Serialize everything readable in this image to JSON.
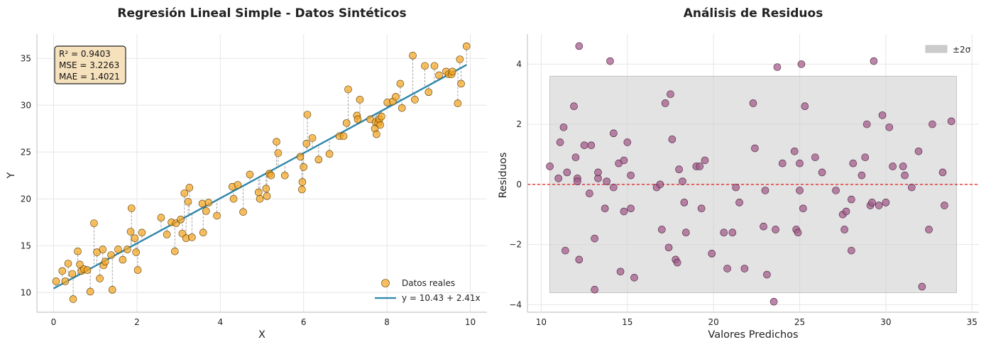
{
  "colors": {
    "scatter_fill": "#f5a623",
    "scatter_edge": "#5a3a00",
    "fit_line": "#2e86ab",
    "residual_line": "#999999",
    "resid_fill": "#a45d8a",
    "resid_edge": "#4a2040",
    "zero_line": "#e31a1c",
    "band_fill": "#cccccc",
    "stats_bg": "#f6e1bd"
  },
  "chart_data": [
    {
      "type": "scatter",
      "title": "Regresión Lineal Simple - Datos Sintéticos",
      "xlabel": "X",
      "ylabel": "Y",
      "xlim": [
        -0.4,
        10.4
      ],
      "ylim": [
        7.9,
        37.6
      ],
      "xticks": [
        0,
        2,
        4,
        6,
        8,
        10
      ],
      "yticks": [
        10,
        15,
        20,
        25,
        30,
        35
      ],
      "grid": true,
      "legend_position": "bottom-right",
      "stats_text": [
        "R² = 0.9403",
        "MSE = 3.2263",
        "MAE = 1.4021"
      ],
      "fit": {
        "intercept": 10.43,
        "slope": 2.41,
        "label": "y = 10.43 + 2.41x"
      },
      "series": [
        {
          "name": "Datos reales",
          "x": [
            0.06,
            0.21,
            0.28,
            0.35,
            0.45,
            0.47,
            0.58,
            0.63,
            0.67,
            0.73,
            0.81,
            0.88,
            0.97,
            1.04,
            1.11,
            1.18,
            1.2,
            1.24,
            1.38,
            1.41,
            1.55,
            1.66,
            1.77,
            1.85,
            1.87,
            1.95,
            1.98,
            2.02,
            2.12,
            2.58,
            2.72,
            2.83,
            2.91,
            2.94,
            3.05,
            3.09,
            3.14,
            3.18,
            3.23,
            3.26,
            3.32,
            3.57,
            3.59,
            3.66,
            3.72,
            3.92,
            4.29,
            4.32,
            4.42,
            4.55,
            4.71,
            4.92,
            4.95,
            5.1,
            5.12,
            5.18,
            5.22,
            5.35,
            5.39,
            5.55,
            5.92,
            5.96,
            5.97,
            6.0,
            6.07,
            6.09,
            6.21,
            6.36,
            6.62,
            6.86,
            6.96,
            7.03,
            7.07,
            7.28,
            7.3,
            7.35,
            7.6,
            7.71,
            7.73,
            7.75,
            7.79,
            7.82,
            7.84,
            7.87,
            8.01,
            8.14,
            8.21,
            8.32,
            8.36,
            8.62,
            8.67,
            8.91,
            9.0,
            9.14,
            9.25,
            9.42,
            9.48,
            9.55,
            9.57,
            9.7,
            9.75,
            9.78,
            9.91
          ],
          "y": [
            11.2,
            12.3,
            11.2,
            13.1,
            12.0,
            9.3,
            14.4,
            13.0,
            12.3,
            12.5,
            12.4,
            10.1,
            17.4,
            14.3,
            11.5,
            14.6,
            12.9,
            13.3,
            14.0,
            10.3,
            14.6,
            13.5,
            14.6,
            16.5,
            19.0,
            15.8,
            14.3,
            12.4,
            16.4,
            18.0,
            16.2,
            17.5,
            14.4,
            17.4,
            17.8,
            16.3,
            20.6,
            15.8,
            19.7,
            21.2,
            15.9,
            19.5,
            16.4,
            18.7,
            19.6,
            18.2,
            21.3,
            20.0,
            21.5,
            18.6,
            22.6,
            20.7,
            20.0,
            21.1,
            20.3,
            22.7,
            22.5,
            26.1,
            24.9,
            22.5,
            24.5,
            21.0,
            21.8,
            23.4,
            25.9,
            29.0,
            26.5,
            24.2,
            24.8,
            26.7,
            26.7,
            28.1,
            31.7,
            28.9,
            28.5,
            30.6,
            28.5,
            27.5,
            28.2,
            26.9,
            28.1,
            28.5,
            27.9,
            28.8,
            30.3,
            30.4,
            30.9,
            32.3,
            29.7,
            35.3,
            30.6,
            34.2,
            31.4,
            34.2,
            33.2,
            33.6,
            33.3,
            33.3,
            33.6,
            30.2,
            34.9,
            32.3,
            36.3
          ]
        }
      ]
    },
    {
      "type": "scatter",
      "title": "Análisis de Residuos",
      "xlabel": "Valores Predichos",
      "ylabel": "Residuos",
      "xlim": [
        9.2,
        35.4
      ],
      "ylim": [
        -4.25,
        5.0
      ],
      "xticks": [
        10,
        15,
        20,
        25,
        30,
        35
      ],
      "yticks": [
        -4,
        -2,
        0,
        2,
        4
      ],
      "grid": true,
      "legend_position": "top-right",
      "band": {
        "label": "±2σ",
        "y_low": -3.6,
        "y_high": 3.6,
        "x_start": 10.5,
        "x_end": 34.1
      },
      "zero_line": 0,
      "series": [
        {
          "name": "Residuos",
          "x": [
            10.5,
            11.1,
            11.0,
            11.3,
            11.4,
            11.5,
            11.9,
            12.0,
            12.1,
            12.1,
            12.2,
            12.2,
            12.5,
            12.8,
            12.9,
            13.1,
            13.1,
            13.3,
            13.3,
            13.7,
            13.8,
            14.0,
            14.2,
            14.2,
            14.5,
            14.6,
            14.8,
            14.8,
            15.0,
            15.2,
            15.2,
            15.4,
            16.7,
            16.9,
            17.0,
            17.2,
            17.4,
            17.5,
            17.6,
            17.8,
            17.9,
            18.0,
            18.2,
            18.3,
            18.4,
            19.0,
            19.2,
            19.3,
            19.5,
            19.9,
            20.6,
            20.8,
            21.1,
            21.3,
            21.5,
            21.8,
            22.3,
            22.4,
            22.9,
            23.0,
            23.1,
            23.5,
            23.6,
            23.7,
            24.0,
            24.7,
            24.8,
            24.9,
            25.0,
            25.0,
            25.1,
            25.2,
            25.3,
            25.9,
            26.3,
            27.1,
            27.5,
            27.6,
            27.7,
            28.0,
            28.0,
            28.1,
            28.6,
            28.8,
            28.9,
            29.1,
            29.2,
            29.3,
            29.6,
            29.8,
            30.0,
            30.2,
            30.4,
            31.0,
            31.1,
            31.5,
            31.9,
            32.1,
            32.5,
            32.7,
            33.3,
            33.4,
            33.8
          ],
          "y": [
            0.6,
            1.4,
            0.2,
            1.9,
            -2.2,
            0.4,
            2.6,
            0.9,
            0.2,
            0.1,
            -2.5,
            4.6,
            1.3,
            -0.3,
            1.3,
            -1.8,
            -3.5,
            0.2,
            0.4,
            -0.8,
            0.1,
            4.1,
            1.7,
            -0.1,
            0.7,
            -2.9,
            0.8,
            -0.9,
            1.4,
            -0.8,
            0.3,
            -3.1,
            -0.1,
            0.0,
            -1.5,
            2.7,
            -2.1,
            3.0,
            1.5,
            -2.5,
            -2.6,
            0.5,
            0.1,
            -0.6,
            -1.6,
            0.6,
            0.6,
            -0.8,
            0.8,
            -2.3,
            -1.6,
            -2.8,
            -1.6,
            -0.1,
            -0.6,
            -2.8,
            2.7,
            1.2,
            -1.4,
            -0.2,
            -3.0,
            -3.9,
            -1.5,
            3.9,
            0.7,
            1.1,
            -1.5,
            -1.6,
            -0.2,
            0.7,
            4.0,
            -0.8,
            2.6,
            0.9,
            0.4,
            -0.2,
            -1.0,
            -1.5,
            -0.9,
            -2.2,
            -0.5,
            0.7,
            0.3,
            0.9,
            2.0,
            -0.7,
            -0.6,
            4.1,
            -0.7,
            2.3,
            -0.6,
            1.9,
            0.6,
            0.6,
            0.3,
            -0.1,
            1.1,
            -3.4,
            -1.5,
            2.0,
            0.4,
            -0.7,
            2.1
          ]
        }
      ]
    }
  ]
}
